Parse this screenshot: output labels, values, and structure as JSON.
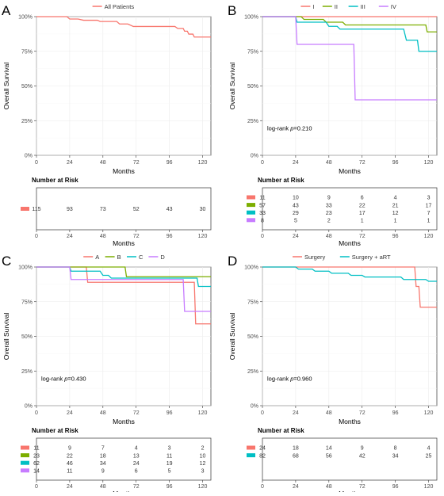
{
  "chart_data": [
    {
      "type": "line",
      "panel_label": "A",
      "title": "",
      "xlabel": "Months",
      "ylabel": "Overall Survival",
      "xlim": [
        0,
        126
      ],
      "ylim": [
        0,
        1
      ],
      "x_ticks": [
        0,
        24,
        48,
        72,
        96,
        120
      ],
      "y_ticks": [
        "0%",
        "25%",
        "50%",
        "75%",
        "100%"
      ],
      "grid": true,
      "legend_position": "top",
      "annotation": "",
      "risk_table_title": "Number at Risk",
      "risk_table_xlabel": "Months",
      "series": [
        {
          "name": "All Patients",
          "color": "#F8766D",
          "points": [
            [
              0,
              1.0
            ],
            [
              22,
              1.0
            ],
            [
              24,
              0.983
            ],
            [
              30,
              0.983
            ],
            [
              34,
              0.974
            ],
            [
              44,
              0.974
            ],
            [
              46,
              0.965
            ],
            [
              58,
              0.965
            ],
            [
              60,
              0.947
            ],
            [
              66,
              0.947
            ],
            [
              70,
              0.929
            ],
            [
              100,
              0.929
            ],
            [
              102,
              0.915
            ],
            [
              106,
              0.915
            ],
            [
              107,
              0.895
            ],
            [
              109,
              0.895
            ],
            [
              110,
              0.874
            ],
            [
              113,
              0.874
            ],
            [
              114,
              0.853
            ],
            [
              126,
              0.853
            ]
          ],
          "risk": [
            "115",
            "93",
            "73",
            "52",
            "43",
            "30"
          ]
        }
      ]
    },
    {
      "type": "line",
      "panel_label": "B",
      "title": "",
      "xlabel": "Months",
      "ylabel": "Overall Survival",
      "xlim": [
        0,
        126
      ],
      "ylim": [
        0,
        1
      ],
      "x_ticks": [
        0,
        24,
        48,
        72,
        96,
        120
      ],
      "y_ticks": [
        "0%",
        "25%",
        "50%",
        "75%",
        "100%"
      ],
      "grid": true,
      "legend_position": "top",
      "annotation": "log-rank p=0.210",
      "annotation_prefix": "log-rank ",
      "annotation_italic": "p",
      "annotation_suffix": "=0.210",
      "risk_table_title": "Number at Risk",
      "risk_table_xlabel": "Months",
      "series": [
        {
          "name": "I",
          "color": "#F8766D",
          "points": [
            [
              0,
              1.0
            ],
            [
              126,
              1.0
            ]
          ],
          "risk": [
            "11",
            "10",
            "9",
            "6",
            "4",
            "3"
          ]
        },
        {
          "name": "II",
          "color": "#7CAE00",
          "points": [
            [
              0,
              1.0
            ],
            [
              28,
              1.0
            ],
            [
              30,
              0.98
            ],
            [
              44,
              0.98
            ],
            [
              46,
              0.96
            ],
            [
              58,
              0.96
            ],
            [
              60,
              0.94
            ],
            [
              118,
              0.94
            ],
            [
              119,
              0.89
            ],
            [
              126,
              0.89
            ]
          ],
          "risk": [
            "57",
            "43",
            "33",
            "22",
            "21",
            "17"
          ]
        },
        {
          "name": "III",
          "color": "#00BFC4",
          "points": [
            [
              0,
              1.0
            ],
            [
              24,
              1.0
            ],
            [
              25,
              0.96
            ],
            [
              46,
              0.96
            ],
            [
              48,
              0.93
            ],
            [
              54,
              0.93
            ],
            [
              56,
              0.91
            ],
            [
              102,
              0.91
            ],
            [
              104,
              0.83
            ],
            [
              112,
              0.83
            ],
            [
              113,
              0.75
            ],
            [
              126,
              0.75
            ]
          ],
          "risk": [
            "33",
            "29",
            "23",
            "17",
            "12",
            "7"
          ]
        },
        {
          "name": "IV",
          "color": "#C77CFF",
          "points": [
            [
              0,
              1.0
            ],
            [
              24,
              1.0
            ],
            [
              25,
              0.8
            ],
            [
              66,
              0.8
            ],
            [
              67,
              0.4
            ],
            [
              126,
              0.4
            ]
          ],
          "risk": [
            "8",
            "5",
            "2",
            "1",
            "1",
            "1"
          ]
        }
      ]
    },
    {
      "type": "line",
      "panel_label": "C",
      "title": "",
      "xlabel": "Months",
      "ylabel": "Overall Survival",
      "xlim": [
        0,
        126
      ],
      "ylim": [
        0,
        1
      ],
      "x_ticks": [
        0,
        24,
        48,
        72,
        96,
        120
      ],
      "y_ticks": [
        "0%",
        "25%",
        "50%",
        "75%",
        "100%"
      ],
      "grid": true,
      "legend_position": "top",
      "annotation": "log-rank p=0.430",
      "annotation_prefix": "log-rank ",
      "annotation_italic": "p",
      "annotation_suffix": "=0.430",
      "risk_table_title": "Number at Risk",
      "risk_table_xlabel": "Months",
      "series": [
        {
          "name": "A",
          "color": "#F8766D",
          "points": [
            [
              0,
              1.0
            ],
            [
              36,
              1.0
            ],
            [
              37,
              0.89
            ],
            [
              114,
              0.89
            ],
            [
              115,
              0.59
            ],
            [
              126,
              0.59
            ]
          ],
          "risk": [
            "11",
            "9",
            "7",
            "4",
            "3",
            "2"
          ]
        },
        {
          "name": "B",
          "color": "#7CAE00",
          "points": [
            [
              0,
              1.0
            ],
            [
              64,
              1.0
            ],
            [
              65,
              0.93
            ],
            [
              126,
              0.93
            ]
          ],
          "risk": [
            "23",
            "22",
            "18",
            "13",
            "11",
            "10"
          ]
        },
        {
          "name": "C",
          "color": "#00BFC4",
          "points": [
            [
              0,
              1.0
            ],
            [
              24,
              1.0
            ],
            [
              25,
              0.97
            ],
            [
              46,
              0.97
            ],
            [
              48,
              0.94
            ],
            [
              52,
              0.94
            ],
            [
              54,
              0.92
            ],
            [
              116,
              0.92
            ],
            [
              117,
              0.86
            ],
            [
              126,
              0.86
            ]
          ],
          "risk": [
            "62",
            "46",
            "34",
            "24",
            "19",
            "12"
          ]
        },
        {
          "name": "D",
          "color": "#C77CFF",
          "points": [
            [
              0,
              1.0
            ],
            [
              24,
              1.0
            ],
            [
              25,
              0.91
            ],
            [
              106,
              0.91
            ],
            [
              107,
              0.68
            ],
            [
              126,
              0.68
            ]
          ],
          "risk": [
            "14",
            "11",
            "9",
            "6",
            "5",
            "3"
          ]
        }
      ]
    },
    {
      "type": "line",
      "panel_label": "D",
      "title": "",
      "xlabel": "Months",
      "ylabel": "Overall Survival",
      "xlim": [
        0,
        126
      ],
      "ylim": [
        0,
        1
      ],
      "x_ticks": [
        0,
        24,
        48,
        72,
        96,
        120
      ],
      "y_ticks": [
        "0%",
        "25%",
        "50%",
        "75%",
        "100%"
      ],
      "grid": true,
      "legend_position": "top",
      "annotation": "log-rank p=0.960",
      "annotation_prefix": "log-rank ",
      "annotation_italic": "p",
      "annotation_suffix": "=0.960",
      "risk_table_title": "Number at Risk",
      "risk_table_xlabel": "Months",
      "series": [
        {
          "name": "Surgery",
          "color": "#F8766D",
          "points": [
            [
              0,
              1.0
            ],
            [
              110,
              1.0
            ],
            [
              111,
              0.86
            ],
            [
              113,
              0.86
            ],
            [
              114,
              0.71
            ],
            [
              126,
              0.71
            ]
          ],
          "risk": [
            "24",
            "18",
            "14",
            "9",
            "8",
            "4"
          ]
        },
        {
          "name": "Surgery + aRT",
          "color": "#00BFC4",
          "points": [
            [
              0,
              1.0
            ],
            [
              24,
              1.0
            ],
            [
              26,
              0.985
            ],
            [
              36,
              0.985
            ],
            [
              38,
              0.97
            ],
            [
              48,
              0.97
            ],
            [
              50,
              0.955
            ],
            [
              62,
              0.955
            ],
            [
              64,
              0.94
            ],
            [
              72,
              0.94
            ],
            [
              74,
              0.928
            ],
            [
              100,
              0.928
            ],
            [
              102,
              0.91
            ],
            [
              118,
              0.91
            ],
            [
              120,
              0.897
            ],
            [
              126,
              0.897
            ]
          ],
          "risk": [
            "82",
            "68",
            "56",
            "42",
            "34",
            "25"
          ]
        }
      ]
    }
  ]
}
